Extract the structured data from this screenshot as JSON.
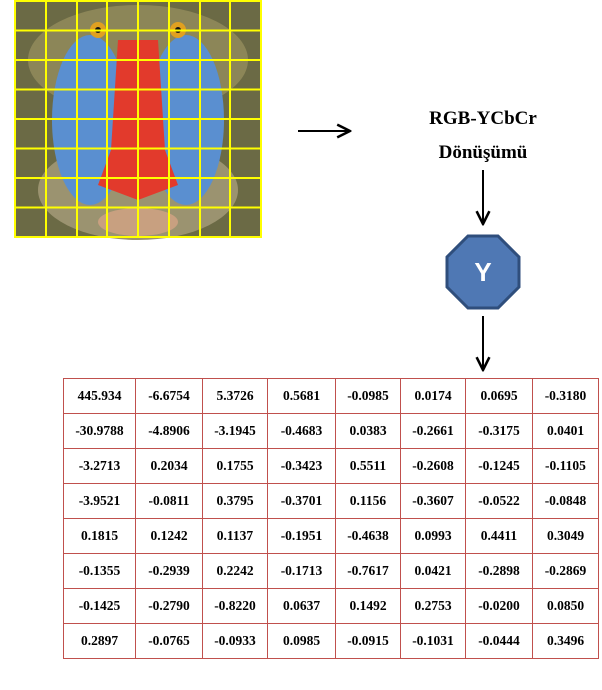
{
  "conversion": {
    "label_lines": [
      "RGB-YCbCr",
      "Dönüşümü"
    ]
  },
  "node": {
    "label": "Y"
  },
  "table": {
    "rows": [
      [
        "445.934",
        "-6.6754",
        "5.3726",
        "0.5681",
        "-0.0985",
        "0.0174",
        "0.0695",
        "-0.3180"
      ],
      [
        "-30.9788",
        "-4.8906",
        "-3.1945",
        "-0.4683",
        "0.0383",
        "-0.2661",
        "-0.3175",
        "0.0401"
      ],
      [
        "-3.2713",
        "0.2034",
        "0.1755",
        "-0.3423",
        "0.5511",
        "-0.2608",
        "-0.1245",
        "-0.1105"
      ],
      [
        "-3.9521",
        "-0.0811",
        "0.3795",
        "-0.3701",
        "0.1156",
        "-0.3607",
        "-0.0522",
        "-0.0848"
      ],
      [
        "0.1815",
        "0.1242",
        "0.1137",
        "-0.1951",
        "-0.4638",
        "0.0993",
        "0.4411",
        "0.3049"
      ],
      [
        "-0.1355",
        "-0.2939",
        "0.2242",
        "-0.1713",
        "-0.7617",
        "0.0421",
        "-0.2898",
        "-0.2869"
      ],
      [
        "-0.1425",
        "-0.2790",
        "-0.8220",
        "0.0637",
        "0.1492",
        "0.2753",
        "-0.0200",
        "0.0850"
      ],
      [
        "0.2897",
        "-0.0765",
        "-0.0933",
        "0.0985",
        "-0.0915",
        "-0.1031",
        "-0.0444",
        "0.3496"
      ]
    ]
  }
}
